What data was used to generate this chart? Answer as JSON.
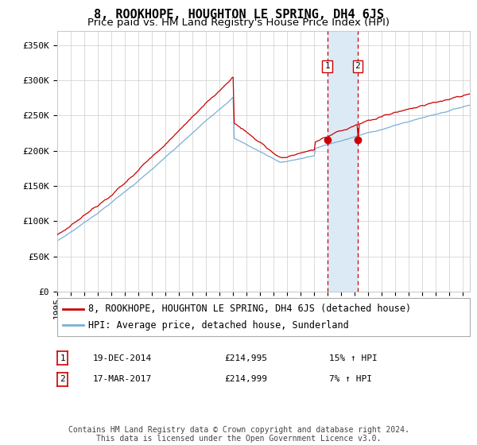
{
  "title": "8, ROOKHOPE, HOUGHTON LE SPRING, DH4 6JS",
  "subtitle": "Price paid vs. HM Land Registry's House Price Index (HPI)",
  "legend_line1": "8, ROOKHOPE, HOUGHTON LE SPRING, DH4 6JS (detached house)",
  "legend_line2": "HPI: Average price, detached house, Sunderland",
  "transaction1_date": "19-DEC-2014",
  "transaction1_price": 214995,
  "transaction1_hpi": "15% ↑ HPI",
  "transaction2_date": "17-MAR-2017",
  "transaction2_price": 214999,
  "transaction2_hpi": "7% ↑ HPI",
  "footer": "Contains HM Land Registry data © Crown copyright and database right 2024.\nThis data is licensed under the Open Government Licence v3.0.",
  "ylim": [
    0,
    370000
  ],
  "yticks": [
    0,
    50000,
    100000,
    150000,
    200000,
    250000,
    300000,
    350000
  ],
  "ytick_labels": [
    "£0",
    "£50K",
    "£100K",
    "£150K",
    "£200K",
    "£250K",
    "£300K",
    "£350K"
  ],
  "hpi_color": "#7bafd4",
  "property_color": "#cc0000",
  "marker_color": "#cc0000",
  "vline_color": "#cc0000",
  "shade_color": "#dceaf5",
  "background_color": "#ffffff",
  "grid_color": "#cccccc",
  "transaction1_x": 2014.96,
  "transaction2_x": 2017.21,
  "title_fontsize": 11,
  "subtitle_fontsize": 9.5,
  "tick_fontsize": 8,
  "legend_fontsize": 8.5,
  "footer_fontsize": 7
}
